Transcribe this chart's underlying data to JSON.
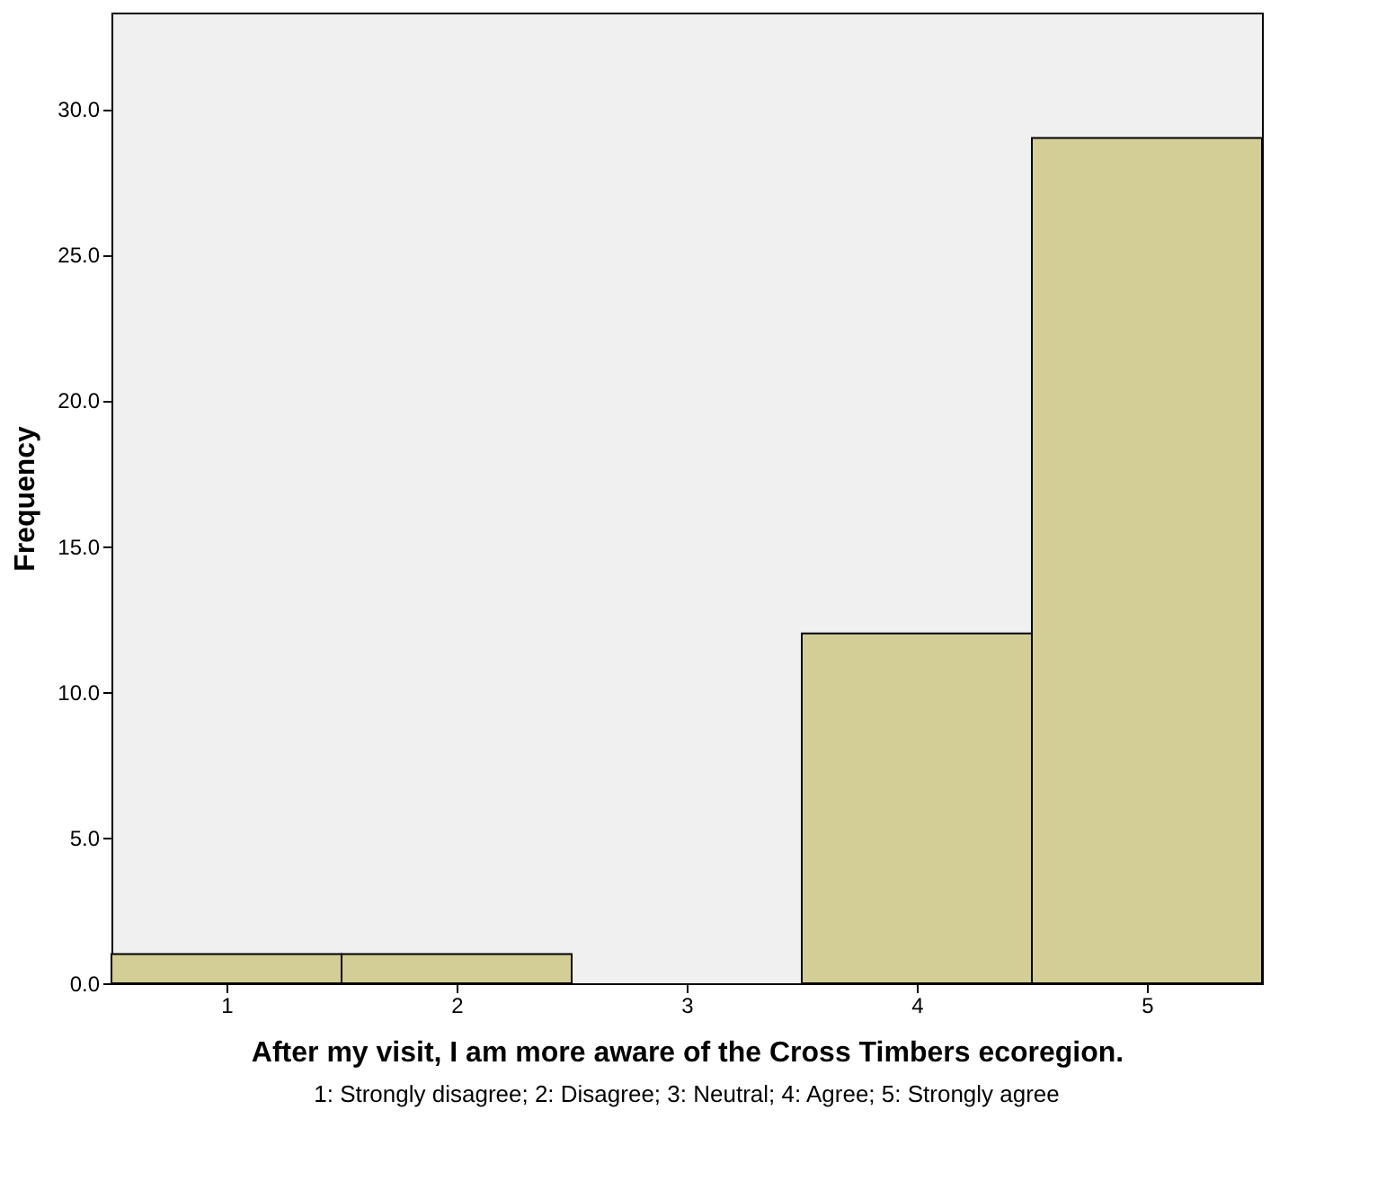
{
  "chart_data": {
    "type": "histogram",
    "xlabel": "After my visit, I am more aware of the Cross Timbers ecoregion.",
    "ylabel": "Frequency",
    "bins": [
      0.5,
      1.5,
      2.5,
      3.5,
      4.5,
      5.5
    ],
    "values": [
      1,
      1,
      0,
      12,
      29
    ],
    "color": "#d3cd96",
    "xlim": [
      0.5,
      5.5
    ],
    "xticks": [
      1,
      2,
      3,
      4,
      5
    ],
    "ylim": [
      0,
      33.3
    ],
    "yticks": [
      {
        "value": 0,
        "label": "0.0"
      },
      {
        "value": 5,
        "label": "5.0"
      },
      {
        "value": 10,
        "label": "10.0"
      },
      {
        "value": 15,
        "label": "15.0"
      },
      {
        "value": 20,
        "label": "20.0"
      },
      {
        "value": 25,
        "label": "25.0"
      },
      {
        "value": 30,
        "label": "30.0"
      }
    ],
    "grid": false,
    "annotations": [
      "1: Strongly disagree; 2: Disagree; 3: Neutral; 4: Agree; 5: Strongly agree"
    ]
  }
}
